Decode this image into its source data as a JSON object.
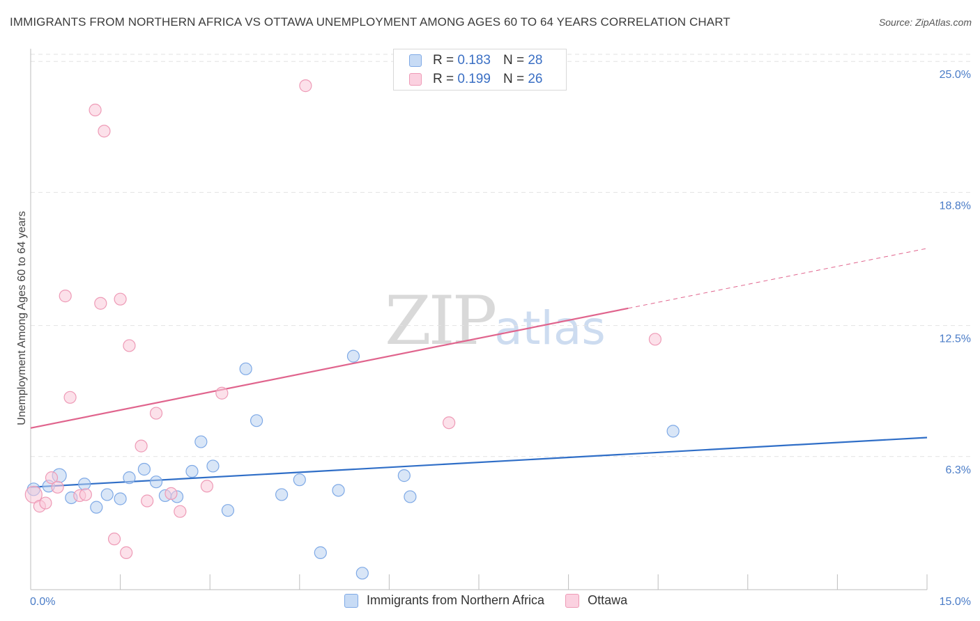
{
  "header": {
    "title": "IMMIGRANTS FROM NORTHERN AFRICA VS OTTAWA UNEMPLOYMENT AMONG AGES 60 TO 64 YEARS CORRELATION CHART",
    "source": "Source: ZipAtlas.com"
  },
  "watermark": {
    "zip": "ZIP",
    "atlas": "atlas"
  },
  "legend": {
    "rows": [
      {
        "r_label": "R =",
        "r_value": "0.183",
        "n_label": "N =",
        "n_value": "28",
        "color": "#a9c6ef"
      },
      {
        "r_label": "R =",
        "r_value": "0.199",
        "n_label": "N =",
        "n_value": "26",
        "color": "#f6b9cf"
      }
    ]
  },
  "bottom_legend": [
    {
      "label": "Immigrants from Northern Africa",
      "color": "#a9c6ef"
    },
    {
      "label": "Ottawa",
      "color": "#f6b9cf"
    }
  ],
  "chart_data": {
    "type": "scatter",
    "title": "IMMIGRANTS FROM NORTHERN AFRICA VS OTTAWA UNEMPLOYMENT AMONG AGES 60 TO 64 YEARS CORRELATION CHART",
    "xlabel": "",
    "ylabel": "Unemployment Among Ages 60 to 64 years",
    "xlim": [
      0,
      15
    ],
    "ylim": [
      0,
      25.6
    ],
    "x_tick_labels": [
      "0.0%",
      "15.0%"
    ],
    "y_ticks": [
      6.3,
      12.5,
      18.8,
      25.0
    ],
    "y_tick_labels": [
      "6.3%",
      "12.5%",
      "18.8%",
      "25.0%"
    ],
    "x_tick_marks": [
      0,
      1.5,
      3,
      4.5,
      6,
      7.5,
      9,
      10.5,
      12,
      13.5,
      15
    ],
    "grid": "horizontal dashed",
    "legend_position": "top-center",
    "series": [
      {
        "name": "Immigrants from Northern Africa",
        "color": "#7ea9e6",
        "fill": "#b9d1f1",
        "trend_color": "#2f6ec7",
        "trend": {
          "x0": 0,
          "y0": 4.85,
          "x1": 15,
          "y1": 7.2,
          "dashed_from": null
        },
        "points": [
          {
            "x": 0.05,
            "y": 4.75,
            "r": 9
          },
          {
            "x": 0.3,
            "y": 4.9
          },
          {
            "x": 0.48,
            "y": 5.4,
            "r": 10
          },
          {
            "x": 0.68,
            "y": 4.35
          },
          {
            "x": 0.9,
            "y": 5.0
          },
          {
            "x": 1.1,
            "y": 3.9
          },
          {
            "x": 1.28,
            "y": 4.5
          },
          {
            "x": 1.5,
            "y": 4.3
          },
          {
            "x": 1.65,
            "y": 5.3
          },
          {
            "x": 1.9,
            "y": 5.7
          },
          {
            "x": 2.1,
            "y": 5.1
          },
          {
            "x": 2.25,
            "y": 4.45
          },
          {
            "x": 2.45,
            "y": 4.4
          },
          {
            "x": 2.7,
            "y": 5.6
          },
          {
            "x": 2.85,
            "y": 7.0
          },
          {
            "x": 3.05,
            "y": 5.85
          },
          {
            "x": 3.3,
            "y": 3.75
          },
          {
            "x": 3.6,
            "y": 10.45
          },
          {
            "x": 3.78,
            "y": 8.0
          },
          {
            "x": 4.2,
            "y": 4.5
          },
          {
            "x": 4.5,
            "y": 5.2
          },
          {
            "x": 4.85,
            "y": 1.75
          },
          {
            "x": 5.15,
            "y": 4.7
          },
          {
            "x": 5.4,
            "y": 11.05
          },
          {
            "x": 5.55,
            "y": 0.78
          },
          {
            "x": 6.25,
            "y": 5.4
          },
          {
            "x": 6.35,
            "y": 4.4
          },
          {
            "x": 10.75,
            "y": 7.5
          }
        ]
      },
      {
        "name": "Ottawa",
        "color": "#ee9ab6",
        "fill": "#f9c8d8",
        "trend_color": "#e0648d",
        "trend": {
          "x0": 0,
          "y0": 7.65,
          "x1": 15,
          "y1": 16.15,
          "dashed_from": 10.0
        },
        "points": [
          {
            "x": 0.05,
            "y": 4.5,
            "r": 12
          },
          {
            "x": 0.15,
            "y": 3.95
          },
          {
            "x": 0.25,
            "y": 4.1
          },
          {
            "x": 0.35,
            "y": 5.3
          },
          {
            "x": 0.45,
            "y": 4.85
          },
          {
            "x": 0.58,
            "y": 13.9
          },
          {
            "x": 0.66,
            "y": 9.1
          },
          {
            "x": 0.82,
            "y": 4.45
          },
          {
            "x": 0.92,
            "y": 4.5
          },
          {
            "x": 1.08,
            "y": 22.7
          },
          {
            "x": 1.17,
            "y": 13.55
          },
          {
            "x": 1.23,
            "y": 21.7
          },
          {
            "x": 1.4,
            "y": 2.4
          },
          {
            "x": 1.5,
            "y": 13.75
          },
          {
            "x": 1.6,
            "y": 1.75
          },
          {
            "x": 1.65,
            "y": 11.55
          },
          {
            "x": 1.85,
            "y": 6.8
          },
          {
            "x": 1.95,
            "y": 4.2
          },
          {
            "x": 2.1,
            "y": 8.35
          },
          {
            "x": 2.35,
            "y": 4.55
          },
          {
            "x": 2.5,
            "y": 3.7
          },
          {
            "x": 2.95,
            "y": 4.9
          },
          {
            "x": 3.2,
            "y": 9.3
          },
          {
            "x": 4.6,
            "y": 23.85
          },
          {
            "x": 7.0,
            "y": 7.9
          },
          {
            "x": 10.45,
            "y": 11.85
          }
        ]
      }
    ]
  }
}
